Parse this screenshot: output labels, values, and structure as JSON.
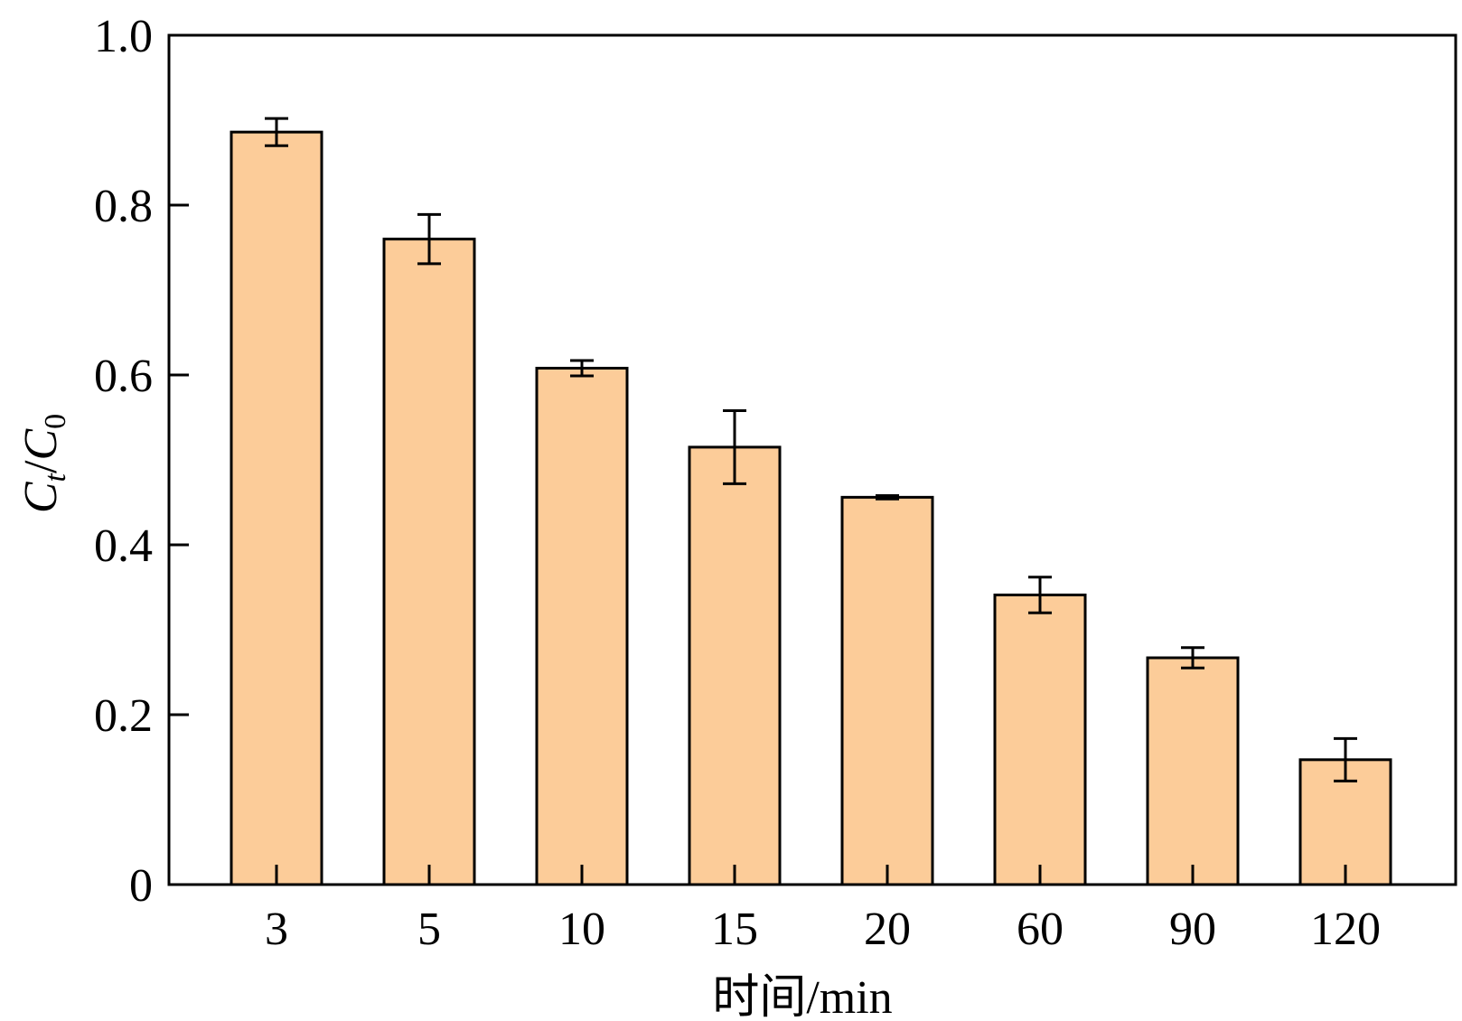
{
  "chart_data": {
    "type": "bar",
    "categories": [
      "3",
      "5",
      "10",
      "15",
      "20",
      "60",
      "90",
      "120"
    ],
    "values": [
      0.886,
      0.76,
      0.608,
      0.515,
      0.456,
      0.341,
      0.267,
      0.147
    ],
    "error": [
      0.016,
      0.029,
      0.009,
      0.043,
      0.002,
      0.021,
      0.012,
      0.025
    ],
    "ylim": [
      0,
      1.0
    ],
    "yticks": [
      0,
      0.2,
      0.4,
      0.6,
      0.8,
      1.0
    ],
    "ytick_labels": [
      "0",
      "0.2",
      "0.4",
      "0.6",
      "0.8",
      "1.0"
    ],
    "xlabel": "时间/min",
    "ylabel": {
      "c1": "C",
      "sub1": "t",
      "slash": "/",
      "c2": "C",
      "sub2": "0"
    },
    "grid": false,
    "legend": "none",
    "colors": {
      "bar_fill": "#fccc99",
      "bar_stroke": "#000000",
      "error_bar": "#000000",
      "axis": "#000000"
    }
  }
}
